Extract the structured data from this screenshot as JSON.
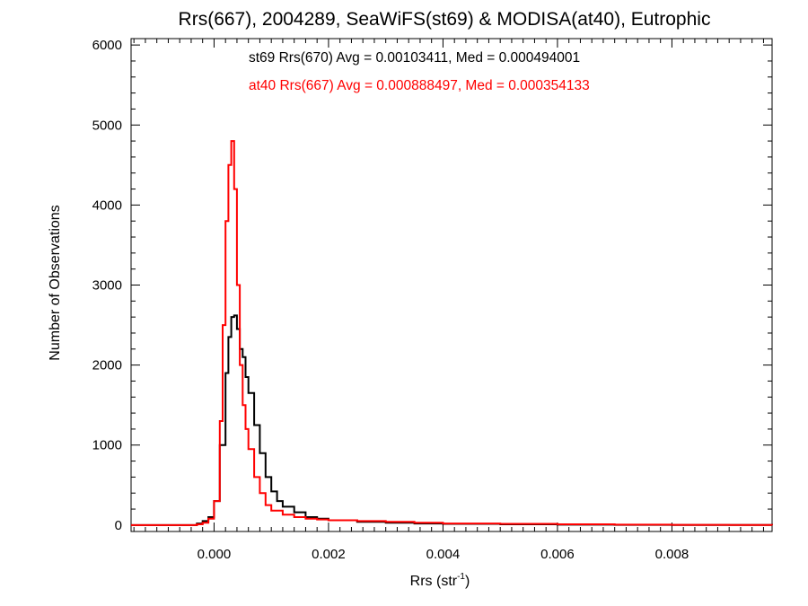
{
  "chart_data": {
    "type": "line",
    "title": "Rrs(667), 2004289, SeaWiFS(st69) & MODISA(at40), Eutrophic",
    "xlabel": "Rrs (str",
    "xlabel_sup": "-1",
    "xlabel_close": ")",
    "ylabel": "Number of Observations",
    "xlim": [
      -0.00145,
      0.00975
    ],
    "ylim": [
      -80,
      6080
    ],
    "x_ticks": [
      0.0,
      0.002,
      0.004,
      0.006,
      0.008
    ],
    "x_tick_labels": [
      "0.000",
      "0.002",
      "0.004",
      "0.006",
      "0.008"
    ],
    "y_ticks": [
      0,
      1000,
      2000,
      3000,
      4000,
      5000,
      6000
    ],
    "y_tick_labels": [
      "0",
      "1000",
      "2000",
      "3000",
      "4000",
      "5000",
      "6000"
    ],
    "grid": false,
    "legend_position": "top-center",
    "series": [
      {
        "name": "st69",
        "color": "#000000",
        "annotation": "st69 Rrs(670) Avg = 0.00103411, Med = 0.000494001",
        "x": [
          -0.00145,
          -0.0005,
          -0.0003,
          -0.0002,
          -0.0001,
          0.0,
          0.0001,
          0.0002,
          0.00025,
          0.0003,
          0.00035,
          0.0004,
          0.00045,
          0.0005,
          0.00055,
          0.0006,
          0.0007,
          0.0008,
          0.0009,
          0.001,
          0.0011,
          0.0012,
          0.0014,
          0.0016,
          0.0018,
          0.002,
          0.0025,
          0.003,
          0.0035,
          0.004,
          0.005,
          0.006,
          0.007,
          0.008,
          0.009,
          0.00975
        ],
        "values": [
          0,
          0,
          20,
          50,
          100,
          300,
          1000,
          1900,
          2350,
          2600,
          2620,
          2450,
          2200,
          2100,
          1850,
          1650,
          1250,
          900,
          600,
          420,
          300,
          230,
          160,
          100,
          80,
          60,
          40,
          30,
          20,
          15,
          10,
          5,
          3,
          2,
          1,
          0
        ]
      },
      {
        "name": "at40",
        "color": "#ff0000",
        "annotation": "at40 Rrs(667) Avg = 0.000888497, Med = 0.000354133",
        "x": [
          -0.00145,
          -0.0005,
          -0.0003,
          -0.0002,
          -0.0001,
          0.0,
          0.0001,
          0.00015,
          0.0002,
          0.00025,
          0.0003,
          0.00035,
          0.0004,
          0.00045,
          0.0005,
          0.00055,
          0.0006,
          0.0007,
          0.0008,
          0.0009,
          0.001,
          0.0012,
          0.0014,
          0.0016,
          0.0018,
          0.002,
          0.0025,
          0.003,
          0.0035,
          0.004,
          0.005,
          0.006,
          0.007,
          0.008,
          0.009,
          0.00975
        ],
        "values": [
          0,
          0,
          10,
          30,
          80,
          300,
          1300,
          2500,
          3800,
          4500,
          4800,
          4200,
          3000,
          2000,
          1500,
          1200,
          950,
          600,
          400,
          250,
          180,
          130,
          100,
          80,
          70,
          60,
          50,
          40,
          30,
          20,
          15,
          10,
          5,
          3,
          1,
          0
        ]
      }
    ]
  }
}
